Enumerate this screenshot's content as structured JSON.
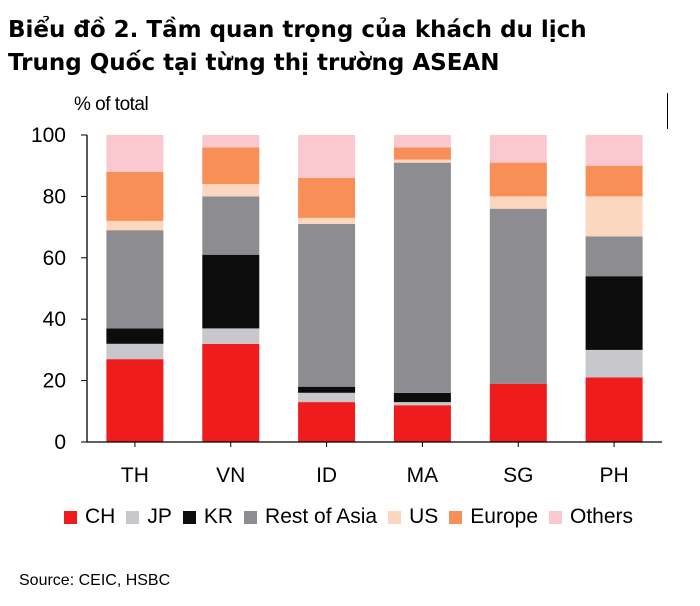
{
  "title_lines": [
    "Biểu đồ 2. Tầm quan trọng của khách du lịch",
    "Trung Quốc tại từng thị trường ASEAN"
  ],
  "source": "Source:  CEIC, HSBC",
  "colors": {
    "CH": "#ee1c1c",
    "JP": "#c8c8cc",
    "KR": "#0c0c0c",
    "Rest of Asia": "#8d8c91",
    "US": "#fcd7bf",
    "Europe": "#f88f57",
    "Others": "#fcc8d0"
  },
  "chart_data": {
    "type": "bar",
    "stacked": true,
    "title": "Biểu đồ 2. Tầm quan trọng của khách du lịch Trung Quốc tại từng thị trường ASEAN",
    "ylabel": "% of total",
    "xlabel": "",
    "ylim": [
      0,
      100
    ],
    "yticks": [
      0,
      20,
      40,
      60,
      80,
      100
    ],
    "grid": false,
    "legend": "bottom",
    "categories": [
      "TH",
      "VN",
      "ID",
      "MA",
      "SG",
      "PH"
    ],
    "series": [
      {
        "name": "CH",
        "values": [
          27,
          32,
          13,
          12,
          19,
          21
        ]
      },
      {
        "name": "JP",
        "values": [
          5,
          5,
          3,
          1,
          0,
          9
        ]
      },
      {
        "name": "KR",
        "values": [
          5,
          24,
          2,
          3,
          0,
          24
        ]
      },
      {
        "name": "Rest of Asia",
        "values": [
          32,
          19,
          53,
          75,
          57,
          13
        ]
      },
      {
        "name": "US",
        "values": [
          3,
          4,
          2,
          1,
          4,
          13
        ]
      },
      {
        "name": "Europe",
        "values": [
          16,
          12,
          13,
          4,
          11,
          10
        ]
      },
      {
        "name": "Others",
        "values": [
          12,
          4,
          14,
          4,
          9,
          10
        ]
      }
    ]
  }
}
